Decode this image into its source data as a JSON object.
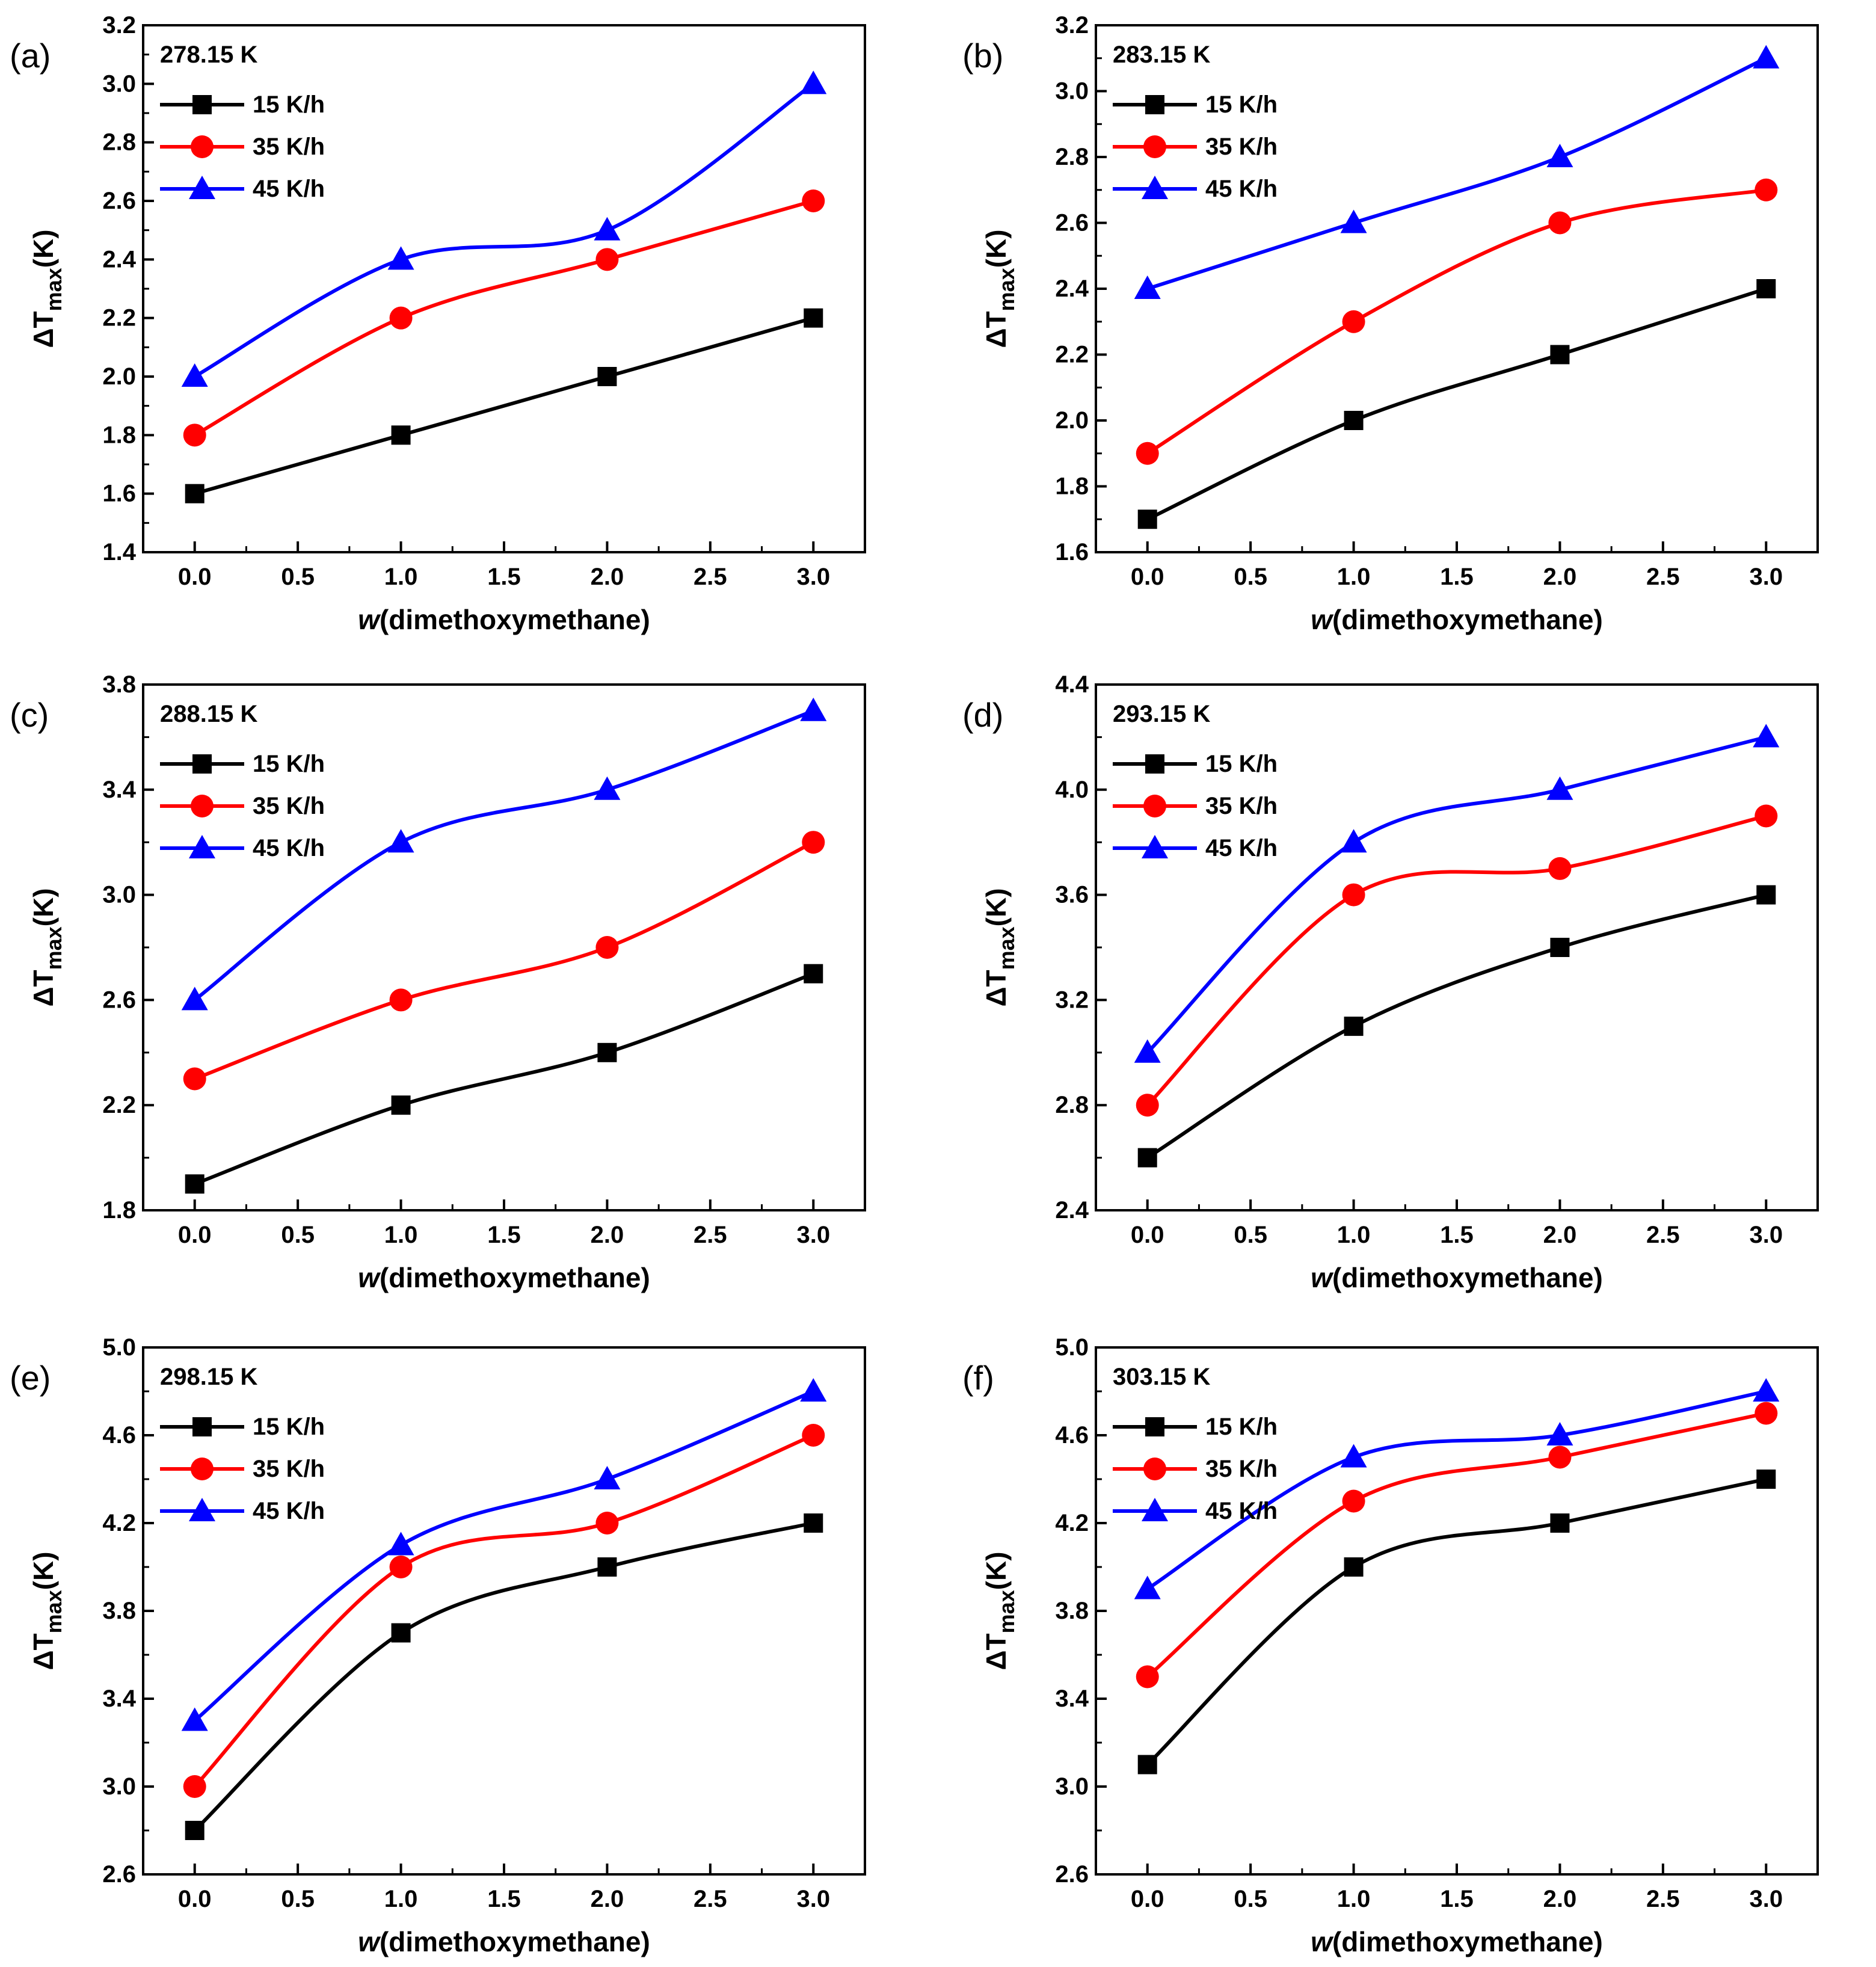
{
  "colors": {
    "15 K/h": "#000000",
    "35 K/h": "#ff0000",
    "45 K/h": "#0000ff"
  },
  "markers": {
    "15 K/h": "square",
    "35 K/h": "circle",
    "45 K/h": "triangle"
  },
  "x_label_prefix": "w",
  "x_label_rest": "(dimethoxymethane)",
  "y_label_main": "ΔT",
  "y_label_sub": "max",
  "y_label_unit": "(K)",
  "chart_data": [
    {
      "type": "line",
      "panel": "(a)",
      "temperature": "278.15 K",
      "x": [
        0.0,
        1.0,
        2.0,
        3.0
      ],
      "xlim": [
        -0.25,
        3.25
      ],
      "xticks": [
        "0.0",
        "0.5",
        "1.0",
        "1.5",
        "2.0",
        "2.5",
        "3.0"
      ],
      "ylim": [
        1.4,
        3.2
      ],
      "yticks": [
        "1.4",
        "1.6",
        "1.8",
        "2.0",
        "2.2",
        "2.4",
        "2.6",
        "2.8",
        "3.0",
        "3.2"
      ],
      "series": [
        {
          "name": "15 K/h",
          "values": [
            1.6,
            1.8,
            2.0,
            2.2
          ]
        },
        {
          "name": "35 K/h",
          "values": [
            1.8,
            2.2,
            2.4,
            2.6
          ]
        },
        {
          "name": "45 K/h",
          "values": [
            2.0,
            2.4,
            2.5,
            3.0
          ]
        }
      ]
    },
    {
      "type": "line",
      "panel": "(b)",
      "temperature": "283.15 K",
      "x": [
        0.0,
        1.0,
        2.0,
        3.0
      ],
      "xlim": [
        -0.25,
        3.25
      ],
      "xticks": [
        "0.0",
        "0.5",
        "1.0",
        "1.5",
        "2.0",
        "2.5",
        "3.0"
      ],
      "ylim": [
        1.6,
        3.2
      ],
      "yticks": [
        "1.6",
        "1.8",
        "2.0",
        "2.2",
        "2.4",
        "2.6",
        "2.8",
        "3.0",
        "3.2"
      ],
      "series": [
        {
          "name": "15 K/h",
          "values": [
            1.7,
            2.0,
            2.2,
            2.4
          ]
        },
        {
          "name": "35 K/h",
          "values": [
            1.9,
            2.3,
            2.6,
            2.7
          ]
        },
        {
          "name": "45 K/h",
          "values": [
            2.4,
            2.6,
            2.8,
            3.1
          ]
        }
      ]
    },
    {
      "type": "line",
      "panel": "(c)",
      "temperature": "288.15 K",
      "x": [
        0.0,
        1.0,
        2.0,
        3.0
      ],
      "xlim": [
        -0.25,
        3.25
      ],
      "xticks": [
        "0.0",
        "0.5",
        "1.0",
        "1.5",
        "2.0",
        "2.5",
        "3.0"
      ],
      "ylim": [
        1.8,
        3.8
      ],
      "yticks": [
        "1.8",
        "2.2",
        "2.6",
        "3.0",
        "3.4",
        "3.8"
      ],
      "series": [
        {
          "name": "15 K/h",
          "values": [
            1.9,
            2.2,
            2.4,
            2.7
          ]
        },
        {
          "name": "35 K/h",
          "values": [
            2.3,
            2.6,
            2.8,
            3.2
          ]
        },
        {
          "name": "45 K/h",
          "values": [
            2.6,
            3.2,
            3.4,
            3.7
          ]
        }
      ]
    },
    {
      "type": "line",
      "panel": "(d)",
      "temperature": "293.15 K",
      "x": [
        0.0,
        1.0,
        2.0,
        3.0
      ],
      "xlim": [
        -0.25,
        3.25
      ],
      "xticks": [
        "0.0",
        "0.5",
        "1.0",
        "1.5",
        "2.0",
        "2.5",
        "3.0"
      ],
      "ylim": [
        2.4,
        4.4
      ],
      "yticks": [
        "2.4",
        "2.8",
        "3.2",
        "3.6",
        "4.0",
        "4.4"
      ],
      "series": [
        {
          "name": "15 K/h",
          "values": [
            2.6,
            3.1,
            3.4,
            3.6
          ]
        },
        {
          "name": "35 K/h",
          "values": [
            2.8,
            3.6,
            3.7,
            3.9
          ]
        },
        {
          "name": "45 K/h",
          "values": [
            3.0,
            3.8,
            4.0,
            4.2
          ]
        }
      ]
    },
    {
      "type": "line",
      "panel": "(e)",
      "temperature": "298.15 K",
      "x": [
        0.0,
        1.0,
        2.0,
        3.0
      ],
      "xlim": [
        -0.25,
        3.25
      ],
      "xticks": [
        "0.0",
        "0.5",
        "1.0",
        "1.5",
        "2.0",
        "2.5",
        "3.0"
      ],
      "ylim": [
        2.6,
        5.0
      ],
      "yticks": [
        "2.6",
        "3.0",
        "3.4",
        "3.8",
        "4.2",
        "4.6",
        "5.0"
      ],
      "series": [
        {
          "name": "15 K/h",
          "values": [
            2.8,
            3.7,
            4.0,
            4.2
          ]
        },
        {
          "name": "35 K/h",
          "values": [
            3.0,
            4.0,
            4.2,
            4.6
          ]
        },
        {
          "name": "45 K/h",
          "values": [
            3.3,
            4.1,
            4.4,
            4.8
          ]
        }
      ]
    },
    {
      "type": "line",
      "panel": "(f)",
      "temperature": "303.15 K",
      "x": [
        0.0,
        1.0,
        2.0,
        3.0
      ],
      "xlim": [
        -0.25,
        3.25
      ],
      "xticks": [
        "0.0",
        "0.5",
        "1.0",
        "1.5",
        "2.0",
        "2.5",
        "3.0"
      ],
      "ylim": [
        2.6,
        5.0
      ],
      "yticks": [
        "2.6",
        "3.0",
        "3.4",
        "3.8",
        "4.2",
        "4.6",
        "5.0"
      ],
      "series": [
        {
          "name": "15 K/h",
          "values": [
            3.1,
            4.0,
            4.2,
            4.4
          ]
        },
        {
          "name": "35 K/h",
          "values": [
            3.5,
            4.3,
            4.5,
            4.7
          ]
        },
        {
          "name": "45 K/h",
          "values": [
            3.9,
            4.5,
            4.6,
            4.8
          ]
        }
      ]
    }
  ]
}
